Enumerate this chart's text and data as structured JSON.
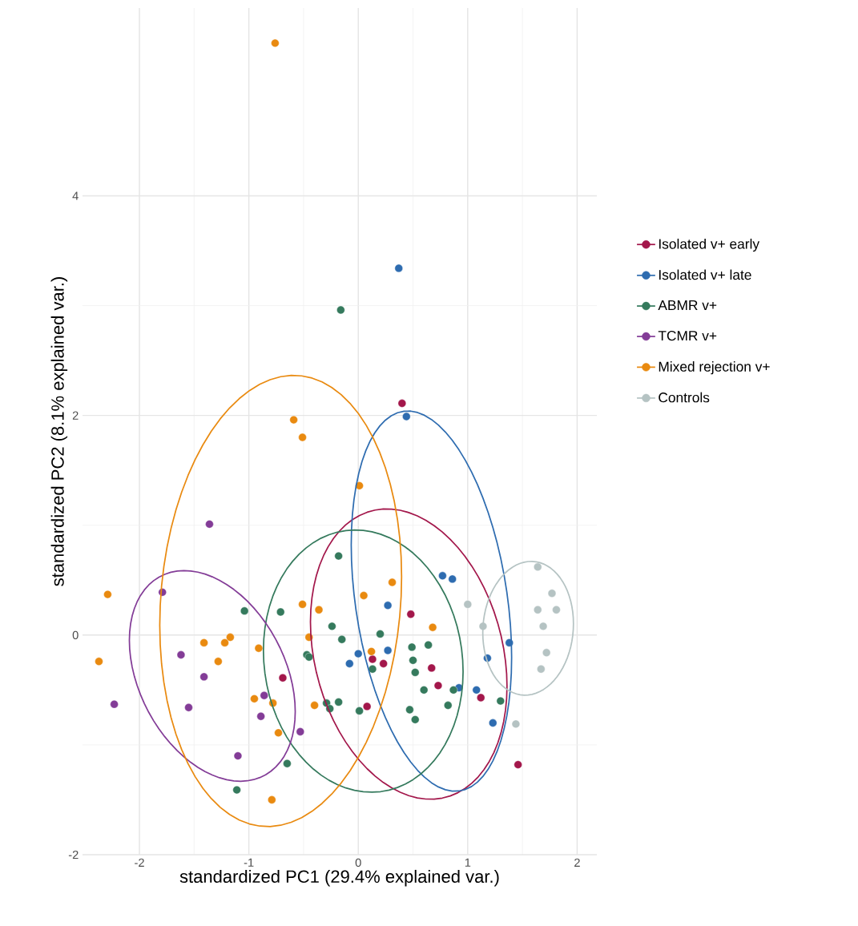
{
  "chart_data": {
    "type": "scatter",
    "xlabel": "standardized PC1 (29.4% explained var.)",
    "ylabel": "standardized PC2 (8.1% explained var.)",
    "xlim": [
      -2.52,
      2.18
    ],
    "ylim": [
      -2,
      5.71
    ],
    "xticks": [
      -2,
      -1,
      0,
      1,
      2
    ],
    "yticks": [
      -2,
      0,
      2,
      4
    ],
    "grid": true,
    "legend": "right",
    "marker": "circle",
    "series": [
      {
        "type": "scatter",
        "name": "Isolated v+ early",
        "color": "#a3174b",
        "x": [
          0.4,
          0.48,
          -0.69,
          0.13,
          0.23,
          0.67,
          0.73,
          1.12,
          0.08,
          1.46
        ],
        "values": [
          2.11,
          0.19,
          -0.39,
          -0.22,
          -0.26,
          -0.3,
          -0.46,
          -0.57,
          -0.65,
          -1.18
        ]
      },
      {
        "type": "scatter",
        "name": "Isolated v+ late",
        "color": "#2e6cb0",
        "x": [
          0.37,
          0.44,
          0.77,
          0.86,
          0.27,
          0.27,
          0.0,
          -0.08,
          0.92,
          1.08,
          1.18,
          1.38,
          1.23
        ],
        "values": [
          3.34,
          1.99,
          0.54,
          0.51,
          0.27,
          -0.14,
          -0.17,
          -0.26,
          -0.48,
          -0.5,
          -0.21,
          -0.07,
          -0.8
        ]
      },
      {
        "type": "scatter",
        "name": "ABMR v+",
        "color": "#357a5d",
        "x": [
          -0.16,
          -0.18,
          -1.04,
          -0.71,
          -0.24,
          0.2,
          -0.15,
          -0.47,
          -0.45,
          0.49,
          0.64,
          0.5,
          0.52,
          0.13,
          0.6,
          0.87,
          -0.29,
          -0.26,
          -0.18,
          0.01,
          0.47,
          0.52,
          0.82,
          1.3,
          -0.65,
          -1.11
        ],
        "values": [
          2.96,
          0.72,
          0.22,
          0.21,
          0.08,
          0.01,
          -0.04,
          -0.18,
          -0.2,
          -0.11,
          -0.09,
          -0.23,
          -0.34,
          -0.31,
          -0.5,
          -0.5,
          -0.62,
          -0.67,
          -0.61,
          -0.69,
          -0.68,
          -0.77,
          -0.64,
          -0.6,
          -1.17,
          -1.41
        ]
      },
      {
        "type": "scatter",
        "name": "TCMR v+",
        "color": "#833c97",
        "x": [
          -1.36,
          -1.79,
          -1.62,
          -1.41,
          -2.23,
          -1.55,
          -0.86,
          -0.89,
          -0.53,
          -1.1
        ],
        "values": [
          1.01,
          0.39,
          -0.18,
          -0.38,
          -0.63,
          -0.66,
          -0.55,
          -0.74,
          -0.88,
          -1.1
        ]
      },
      {
        "type": "scatter",
        "name": "Mixed rejection v+",
        "color": "#e98a10",
        "x": [
          -0.76,
          -0.59,
          -0.51,
          0.01,
          0.31,
          0.05,
          -2.29,
          -0.51,
          -0.36,
          0.68,
          -1.17,
          -0.45,
          -1.22,
          -1.41,
          -0.91,
          0.12,
          -1.28,
          -2.37,
          -0.95,
          -0.78,
          -0.4,
          -0.73,
          -0.79
        ],
        "values": [
          5.39,
          1.96,
          1.8,
          1.36,
          0.48,
          0.36,
          0.37,
          0.28,
          0.23,
          0.07,
          -0.02,
          -0.02,
          -0.07,
          -0.07,
          -0.12,
          -0.15,
          -0.24,
          -0.24,
          -0.58,
          -0.62,
          -0.64,
          -0.89,
          -1.5
        ]
      },
      {
        "type": "scatter",
        "name": "Controls",
        "color": "#b5c3c3",
        "x": [
          1.64,
          1.77,
          1.0,
          1.64,
          1.81,
          1.69,
          1.14,
          1.72,
          1.67,
          1.44
        ],
        "values": [
          0.62,
          0.38,
          0.28,
          0.23,
          0.23,
          0.08,
          0.08,
          -0.16,
          -0.31,
          -0.81
        ]
      }
    ]
  }
}
